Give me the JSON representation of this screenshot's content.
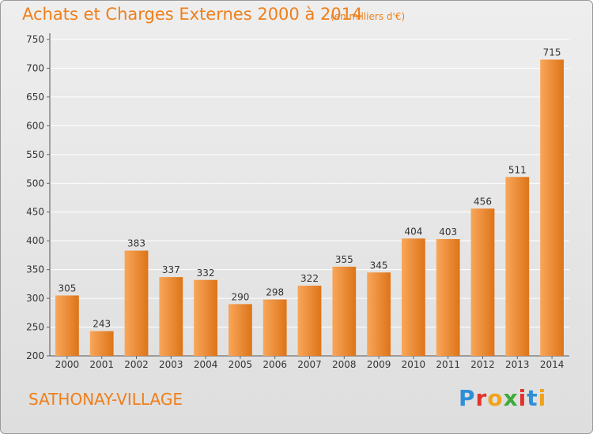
{
  "title": "Achats et Charges Externes 2000 à 2014",
  "subtitle": "(en milliers d'€)",
  "city": "SATHONAY-VILLAGE",
  "logo": {
    "text": "Proxiti",
    "letters": [
      {
        "ch": "P",
        "color": "#2f8ed8"
      },
      {
        "ch": "r",
        "color": "#e2322c"
      },
      {
        "ch": "o",
        "color": "#f0a31b"
      },
      {
        "ch": "x",
        "color": "#3cab3a"
      },
      {
        "ch": "i",
        "color": "#e2322c"
      },
      {
        "ch": "t",
        "color": "#2f8ed8"
      },
      {
        "ch": "i",
        "color": "#f0a31b"
      }
    ]
  },
  "colors": {
    "accent": "#ef7f1a",
    "bar_light": "#f9a65a",
    "bar_dark": "#dd7418",
    "grid": "#ffffff",
    "axis_text": "#333333"
  },
  "chart_data": {
    "type": "bar",
    "categories": [
      "2000",
      "2001",
      "2002",
      "2003",
      "2004",
      "2005",
      "2006",
      "2007",
      "2008",
      "2009",
      "2010",
      "2011",
      "2012",
      "2013",
      "2014"
    ],
    "values": [
      305,
      243,
      383,
      337,
      332,
      290,
      298,
      322,
      355,
      345,
      404,
      403,
      456,
      511,
      715
    ],
    "ylim": [
      200,
      750
    ],
    "yticks": [
      200,
      250,
      300,
      350,
      400,
      450,
      500,
      550,
      600,
      650,
      700,
      750
    ],
    "grid": true,
    "data_labels": true
  }
}
